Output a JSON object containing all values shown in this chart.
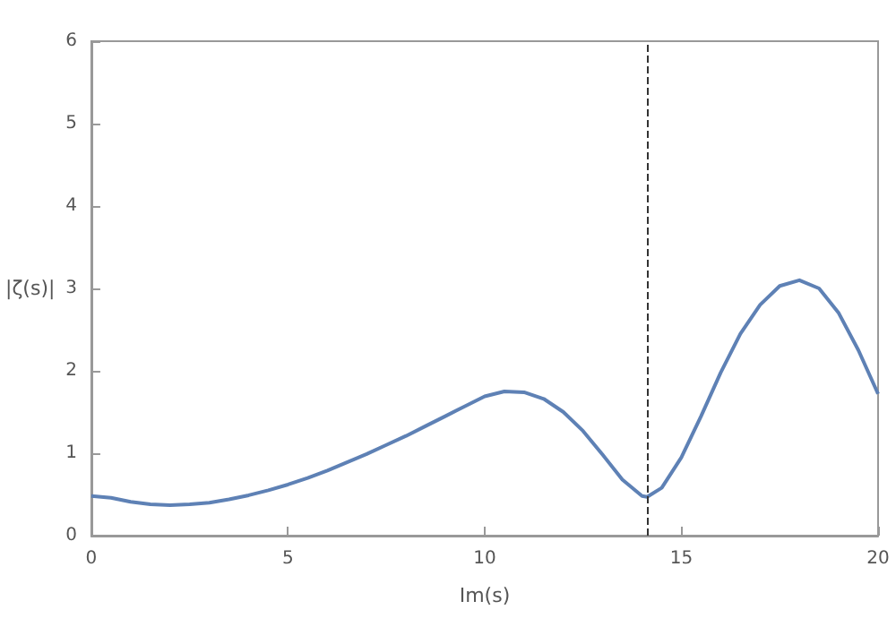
{
  "chart_data": {
    "type": "line",
    "xlabel": "Im(s)",
    "ylabel": "|ζ(s)|",
    "x": [
      0,
      0.5,
      1,
      1.5,
      2,
      2.5,
      3,
      3.5,
      4,
      4.5,
      5,
      5.5,
      6,
      6.5,
      7,
      7.5,
      8,
      8.5,
      9,
      9.5,
      10,
      10.5,
      11,
      11.5,
      12,
      12.5,
      13,
      13.5,
      14,
      14.13,
      14.5,
      15,
      15.5,
      16,
      16.5,
      17,
      17.5,
      18,
      18.5,
      19,
      19.5,
      20
    ],
    "series": [
      {
        "color": "#5e81b5",
        "values": [
          0.48,
          0.46,
          0.41,
          0.38,
          0.37,
          0.38,
          0.4,
          0.44,
          0.49,
          0.55,
          0.62,
          0.7,
          0.79,
          0.89,
          0.99,
          1.1,
          1.21,
          1.33,
          1.45,
          1.57,
          1.69,
          1.75,
          1.74,
          1.66,
          1.5,
          1.27,
          0.98,
          0.68,
          0.48,
          0.47,
          0.58,
          0.95,
          1.45,
          1.98,
          2.45,
          2.8,
          3.03,
          3.1,
          3.0,
          2.7,
          2.25,
          1.72
        ]
      }
    ],
    "xlim": [
      0,
      20
    ],
    "xticks": [
      0,
      5,
      10,
      15,
      20
    ],
    "ylim": [
      0,
      6
    ],
    "yticks": [
      0,
      1,
      2,
      3,
      4,
      5,
      6
    ],
    "ref_lines": [
      {
        "axis": "x",
        "value": 14.13,
        "color": "#333333",
        "line_style": "dashed"
      }
    ],
    "grid": false,
    "marker": "none",
    "line_style": "solid"
  }
}
